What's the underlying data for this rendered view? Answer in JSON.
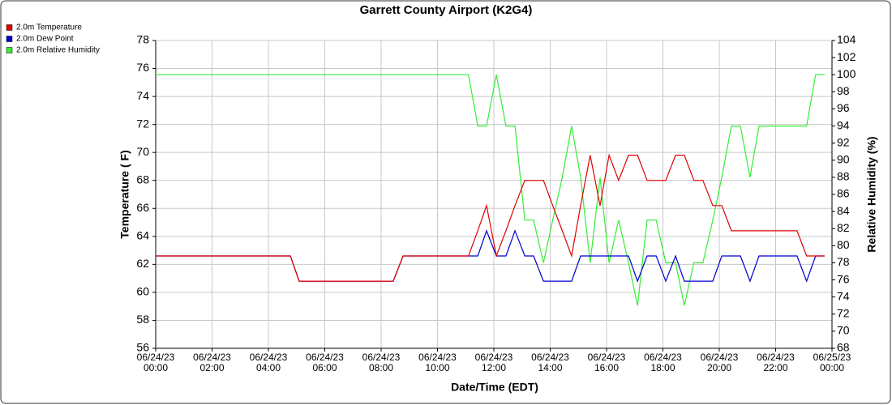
{
  "chart_data": {
    "type": "line",
    "title": "Garrett County Airport (K2G4)",
    "x_label": "Date/Time (EDT)",
    "y_label": "Temperature ( F)",
    "y2_label": "Relative Humidity (%)",
    "xlim": [
      0,
      24
    ],
    "xticks": [
      {
        "value": 0,
        "label": "06/24/23 00:00"
      },
      {
        "value": 2,
        "label": "06/24/23 02:00"
      },
      {
        "value": 4,
        "label": "06/24/23 04:00"
      },
      {
        "value": 6,
        "label": "06/24/23 06:00"
      },
      {
        "value": 8,
        "label": "06/24/23 08:00"
      },
      {
        "value": 10,
        "label": "06/24/23 10:00"
      },
      {
        "value": 12,
        "label": "06/24/23 12:00"
      },
      {
        "value": 14,
        "label": "06/24/23 14:00"
      },
      {
        "value": 16,
        "label": "06/24/23 16:00"
      },
      {
        "value": 18,
        "label": "06/24/23 18:00"
      },
      {
        "value": 20,
        "label": "06/24/23 20:00"
      },
      {
        "value": 22,
        "label": "06/24/23 22:00"
      },
      {
        "value": 24,
        "label": "06/25/23 00:00"
      }
    ],
    "ylim": [
      56,
      78
    ],
    "yticks": [
      56,
      58,
      60,
      62,
      64,
      66,
      68,
      70,
      72,
      74,
      76,
      78
    ],
    "y2lim": [
      68,
      104
    ],
    "y2ticks": [
      68,
      70,
      72,
      74,
      76,
      78,
      80,
      82,
      84,
      86,
      88,
      90,
      92,
      94,
      96,
      98,
      100,
      102,
      104
    ],
    "grid": true,
    "legend": "top-left",
    "x": [
      0,
      4.78,
      5.09,
      8.43,
      8.78,
      11.1,
      11.43,
      11.74,
      12.09,
      12.43,
      12.75,
      13.1,
      13.41,
      13.76,
      14.09,
      14.43,
      14.76,
      15.08,
      15.42,
      15.77,
      16.09,
      16.43,
      16.78,
      17.1,
      17.44,
      17.76,
      18.1,
      18.45,
      18.76,
      19.1,
      19.42,
      19.77,
      20.09,
      20.43,
      20.75,
      21.09,
      21.41,
      21.76,
      22.09,
      22.43,
      22.76,
      23.1,
      23.42,
      23.74
    ],
    "series": [
      {
        "name": "2.0m Temperature",
        "color": "#e00000",
        "values": [
          62.6,
          62.6,
          60.8,
          60.8,
          62.6,
          62.6,
          64.4,
          66.2,
          62.6,
          64.4,
          66.2,
          68,
          68,
          68,
          66.2,
          64.4,
          62.6,
          66.2,
          69.8,
          66.2,
          69.8,
          68,
          69.8,
          69.8,
          68,
          68,
          68,
          69.8,
          69.8,
          68,
          68,
          66.2,
          66.2,
          64.4,
          64.4,
          64.4,
          64.4,
          64.4,
          64.4,
          64.4,
          64.4,
          62.6,
          62.6,
          62.6
        ]
      },
      {
        "name": "2.0m Dew Point",
        "color": "#0000d0",
        "values": [
          62.6,
          62.6,
          60.8,
          60.8,
          62.6,
          62.6,
          62.6,
          64.4,
          62.6,
          62.6,
          64.4,
          62.6,
          62.6,
          60.8,
          60.8,
          60.8,
          60.8,
          62.6,
          62.6,
          62.6,
          62.6,
          62.6,
          62.6,
          60.8,
          62.6,
          62.6,
          60.8,
          62.6,
          60.8,
          60.8,
          60.8,
          60.8,
          62.6,
          62.6,
          62.6,
          60.8,
          62.6,
          62.6,
          62.6,
          62.6,
          62.6,
          60.8,
          62.6,
          62.6
        ]
      },
      {
        "name": "2.0m Relative Humidity",
        "color": "#33ee33",
        "axis": "y2",
        "values": [
          100,
          100,
          100,
          100,
          100,
          100,
          94,
          94,
          100,
          94,
          94,
          83,
          83,
          78,
          83,
          88,
          94,
          88,
          78,
          88,
          78,
          83,
          78,
          73,
          83,
          83,
          78,
          78,
          73,
          78,
          78,
          83,
          88,
          94,
          94,
          88,
          94,
          94,
          94,
          94,
          94,
          94,
          100,
          100
        ]
      }
    ]
  }
}
